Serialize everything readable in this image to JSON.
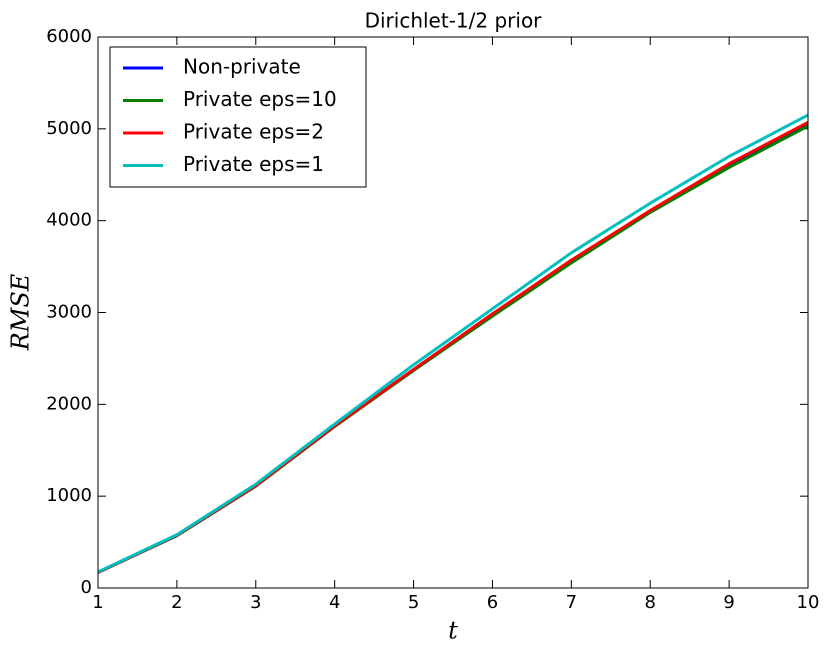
{
  "chart_data": {
    "type": "line",
    "title": "Dirichlet-1/2 prior",
    "x_label": "t",
    "y_label": "RMSE",
    "x": [
      1,
      2,
      3,
      4,
      5,
      6,
      7,
      8,
      9,
      10
    ],
    "series": [
      {
        "name": "Non-private",
        "color": "#0000ff",
        "values": [
          170,
          570,
          1110,
          1760,
          2370,
          2970,
          3550,
          4100,
          4590,
          5040
        ]
      },
      {
        "name": "Private eps=10",
        "color": "#008000",
        "values": [
          170,
          570,
          1110,
          1760,
          2370,
          2960,
          3540,
          4090,
          4580,
          5030
        ]
      },
      {
        "name": "Private eps=2",
        "color": "#ff0000",
        "values": [
          170,
          575,
          1115,
          1765,
          2380,
          2985,
          3570,
          4110,
          4620,
          5070
        ]
      },
      {
        "name": "Private eps=1",
        "color": "#00bfbf",
        "values": [
          175,
          580,
          1130,
          1785,
          2430,
          3040,
          3650,
          4190,
          4700,
          5150
        ]
      }
    ],
    "xlim": [
      1,
      10
    ],
    "ylim": [
      0,
      6000
    ],
    "xticks": [
      1,
      2,
      3,
      4,
      5,
      6,
      7,
      8,
      9,
      10
    ],
    "yticks": [
      0,
      1000,
      2000,
      3000,
      4000,
      5000,
      6000
    ],
    "legend": "upper left"
  }
}
